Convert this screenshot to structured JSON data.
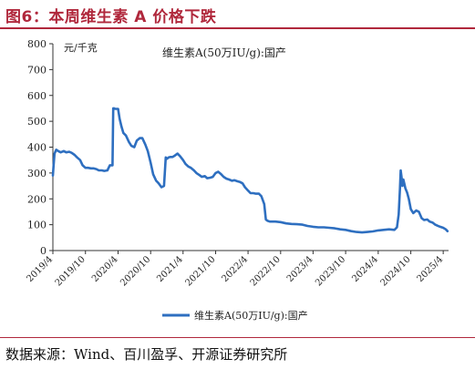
{
  "figure": {
    "title": "图6：本周维生素 A 价格下跌",
    "source": "数据来源：Wind、百川盈孚、开源证券研究所"
  },
  "chart_data": {
    "type": "line",
    "unit_label": "元/千克",
    "annotation": "维生素A(50万IU/g):国产",
    "ylim": [
      0,
      800
    ],
    "yticks": [
      0,
      100,
      200,
      300,
      400,
      500,
      600,
      700,
      800
    ],
    "xlim": [
      "2019-04-01",
      "2025-05-01"
    ],
    "xtick_labels": [
      "2019/4",
      "2019/10",
      "2020/4",
      "2020/10",
      "2021/4",
      "2021/10",
      "2022/4",
      "2022/10",
      "2023/4",
      "2023/10",
      "2024/4",
      "2024/10",
      "2025/4"
    ],
    "xtick_dates": [
      "2019-04-01",
      "2019-10-01",
      "2020-04-01",
      "2020-10-01",
      "2021-04-01",
      "2021-10-01",
      "2022-04-01",
      "2022-10-01",
      "2023-04-01",
      "2023-10-01",
      "2024-04-01",
      "2024-10-01",
      "2025-04-01"
    ],
    "legend_position": "bottom",
    "grid": false,
    "line_color": "#2e6fc0",
    "series": [
      {
        "name": "维生素A(50万IU/g):国产",
        "x": [
          "2019-04-01",
          "2019-04-05",
          "2019-04-10",
          "2019-04-20",
          "2019-05-01",
          "2019-05-15",
          "2019-06-01",
          "2019-06-15",
          "2019-07-01",
          "2019-07-15",
          "2019-08-01",
          "2019-08-15",
          "2019-09-01",
          "2019-09-15",
          "2019-10-01",
          "2019-10-15",
          "2019-11-01",
          "2019-11-15",
          "2019-12-01",
          "2019-12-15",
          "2020-01-01",
          "2020-01-15",
          "2020-02-01",
          "2020-02-15",
          "2020-03-01",
          "2020-03-05",
          "2020-03-10",
          "2020-03-15",
          "2020-04-01",
          "2020-04-10",
          "2020-04-20",
          "2020-05-01",
          "2020-05-15",
          "2020-06-01",
          "2020-06-15",
          "2020-07-01",
          "2020-07-15",
          "2020-08-01",
          "2020-08-15",
          "2020-09-01",
          "2020-09-15",
          "2020-10-01",
          "2020-10-15",
          "2020-11-01",
          "2020-11-15",
          "2020-12-01",
          "2020-12-15",
          "2020-12-25",
          "2021-01-01",
          "2021-01-10",
          "2021-01-20",
          "2021-02-01",
          "2021-02-15",
          "2021-03-01",
          "2021-03-15",
          "2021-04-01",
          "2021-04-15",
          "2021-05-01",
          "2021-05-15",
          "2021-06-01",
          "2021-06-15",
          "2021-07-01",
          "2021-07-15",
          "2021-08-01",
          "2021-08-15",
          "2021-09-01",
          "2021-09-15",
          "2021-10-01",
          "2021-10-15",
          "2021-11-01",
          "2021-11-15",
          "2021-12-01",
          "2021-12-15",
          "2022-01-01",
          "2022-01-15",
          "2022-02-01",
          "2022-02-15",
          "2022-03-01",
          "2022-03-15",
          "2022-04-01",
          "2022-04-15",
          "2022-05-01",
          "2022-05-15",
          "2022-06-01",
          "2022-06-15",
          "2022-07-01",
          "2022-07-10",
          "2022-07-20",
          "2022-08-01",
          "2022-09-01",
          "2022-10-01",
          "2022-11-01",
          "2022-12-01",
          "2023-01-01",
          "2023-02-01",
          "2023-03-01",
          "2023-04-01",
          "2023-05-01",
          "2023-06-01",
          "2023-07-01",
          "2023-08-01",
          "2023-09-01",
          "2023-10-01",
          "2023-11-01",
          "2023-12-01",
          "2024-01-01",
          "2024-02-01",
          "2024-03-01",
          "2024-04-01",
          "2024-05-01",
          "2024-06-01",
          "2024-07-01",
          "2024-07-15",
          "2024-07-25",
          "2024-08-01",
          "2024-08-05",
          "2024-08-10",
          "2024-08-15",
          "2024-08-20",
          "2024-08-25",
          "2024-09-01",
          "2024-09-10",
          "2024-09-20",
          "2024-10-01",
          "2024-10-15",
          "2024-11-01",
          "2024-11-15",
          "2024-12-01",
          "2024-12-15",
          "2025-01-01",
          "2025-01-15",
          "2025-02-01",
          "2025-02-15",
          "2025-03-01",
          "2025-03-15",
          "2025-04-01",
          "2025-04-15",
          "2025-04-25"
        ],
        "values": [
          290,
          330,
          375,
          390,
          385,
          380,
          385,
          380,
          382,
          378,
          370,
          360,
          350,
          330,
          320,
          320,
          318,
          318,
          315,
          310,
          310,
          308,
          310,
          330,
          330,
          550,
          550,
          548,
          548,
          510,
          480,
          455,
          445,
          420,
          405,
          400,
          425,
          435,
          435,
          410,
          385,
          340,
          295,
          270,
          260,
          245,
          250,
          360,
          355,
          360,
          362,
          362,
          368,
          375,
          365,
          350,
          335,
          325,
          320,
          310,
          300,
          292,
          285,
          288,
          280,
          282,
          285,
          300,
          305,
          295,
          285,
          278,
          275,
          270,
          272,
          268,
          265,
          260,
          245,
          232,
          222,
          222,
          220,
          220,
          210,
          180,
          120,
          115,
          112,
          112,
          110,
          105,
          103,
          102,
          100,
          95,
          92,
          90,
          90,
          88,
          86,
          82,
          80,
          75,
          72,
          70,
          72,
          74,
          78,
          80,
          82,
          80,
          90,
          140,
          240,
          310,
          285,
          250,
          275,
          260,
          240,
          225,
          200,
          160,
          145,
          155,
          150,
          125,
          118,
          120,
          112,
          108,
          100,
          96,
          92,
          88,
          82,
          75
        ]
      }
    ]
  }
}
